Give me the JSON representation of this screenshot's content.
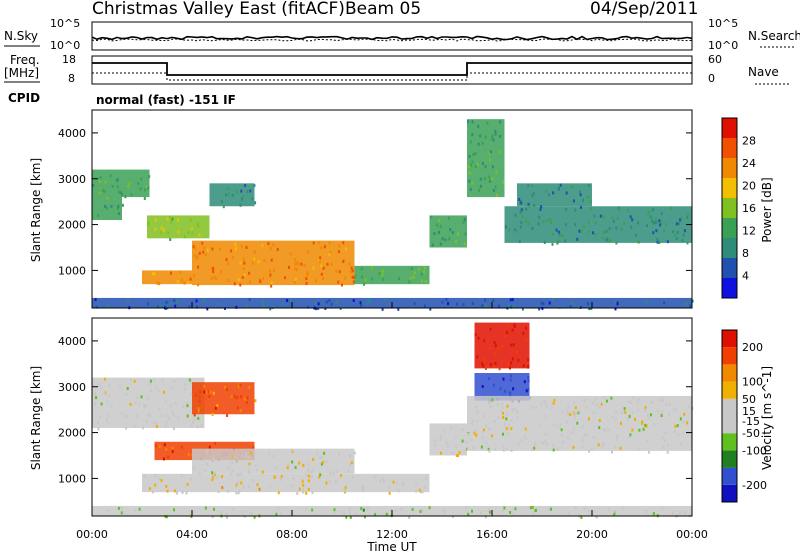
{
  "header": {
    "station": "Christmas Valley East (fitACF)",
    "beam": "Beam 05",
    "date": "04/Sep/2011"
  },
  "strips": {
    "nsky_label": "N.Sky",
    "nsearch_label": "N.Search",
    "freq_label_1": "Freq.",
    "freq_label_2": "[MHz]",
    "nave_label": "Nave",
    "cpid_label": "CPID",
    "cpid_value": "normal (fast) -151 IF",
    "noise_left_ticks": [
      "10^5",
      "10^0"
    ],
    "noise_right_ticks": [
      "10^5",
      "10^0"
    ],
    "freq_left_ticks": [
      "18",
      "8"
    ],
    "freq_right_ticks": [
      "60",
      "0"
    ]
  },
  "colors": {
    "power_scale": [
      "#1010e0",
      "#2050b0",
      "#2e8c78",
      "#3aa055",
      "#80c020",
      "#f2c000",
      "#f08800",
      "#f05000",
      "#e01000"
    ],
    "velocity_scale": [
      "#e01000",
      "#f04000",
      "#f08800",
      "#f0b000",
      "#c8c8c8",
      "#c8c8c8",
      "#60c020",
      "#208020",
      "#3050d0",
      "#1010c0"
    ],
    "gray_band": "#c8c8c8"
  },
  "chart_data": [
    {
      "type": "heatmap",
      "quantity": "power",
      "ylabel": "Slant Range [km]",
      "yticks": [
        1000,
        2000,
        3000,
        4000
      ],
      "ylim": [
        180,
        4500
      ],
      "colorbar_label": "Power [dB]",
      "colorbar_ticks": [
        4,
        8,
        12,
        16,
        20,
        24,
        28
      ],
      "colorbar_range": [
        0,
        32
      ],
      "regions": [
        {
          "t": [
            0.0,
            1.2
          ],
          "r": [
            2100,
            3200
          ],
          "v": 12
        },
        {
          "t": [
            1.2,
            2.3
          ],
          "r": [
            2600,
            3200
          ],
          "v": 14
        },
        {
          "t": [
            2.2,
            4.7
          ],
          "r": [
            1700,
            2200
          ],
          "v": 16
        },
        {
          "t": [
            4.7,
            6.5
          ],
          "r": [
            2400,
            2900
          ],
          "v": 10
        },
        {
          "t": [
            2.0,
            4.0
          ],
          "r": [
            700,
            1000
          ],
          "v": 22
        },
        {
          "t": [
            4.0,
            10.5
          ],
          "r": [
            680,
            1650
          ],
          "v": 24
        },
        {
          "t": [
            10.5,
            13.5
          ],
          "r": [
            700,
            1100
          ],
          "v": 14
        },
        {
          "t": [
            13.5,
            15.0
          ],
          "r": [
            1500,
            2200
          ],
          "v": 12
        },
        {
          "t": [
            15.0,
            16.5
          ],
          "r": [
            2600,
            4300
          ],
          "v": 12
        },
        {
          "t": [
            16.5,
            24.0
          ],
          "r": [
            1600,
            2400
          ],
          "v": 10
        },
        {
          "t": [
            17.0,
            20.0
          ],
          "r": [
            2400,
            2900
          ],
          "v": 8
        },
        {
          "t": [
            0.0,
            24.0
          ],
          "r": [
            180,
            400
          ],
          "v": 6
        }
      ]
    },
    {
      "type": "heatmap",
      "quantity": "velocity",
      "ylabel": "Slant Range [km]",
      "yticks": [
        1000,
        2000,
        3000,
        4000
      ],
      "ylim": [
        180,
        4500
      ],
      "colorbar_label": "Velocity [m s^-1]",
      "colorbar_ticks": [
        200,
        100,
        50,
        15,
        -15,
        -50,
        -100,
        -200
      ],
      "colorbar_range": [
        -250,
        250
      ],
      "regions": [
        {
          "t": [
            0.0,
            4.5
          ],
          "r": [
            2100,
            3200
          ],
          "v": 0
        },
        {
          "t": [
            2.5,
            6.5
          ],
          "r": [
            1400,
            1800
          ],
          "v": 180
        },
        {
          "t": [
            4.0,
            6.5
          ],
          "r": [
            2400,
            3100
          ],
          "v": 150
        },
        {
          "t": [
            2.0,
            10.5
          ],
          "r": [
            700,
            1100
          ],
          "v": 40
        },
        {
          "t": [
            4.0,
            10.5
          ],
          "r": [
            1100,
            1650
          ],
          "v": 0
        },
        {
          "t": [
            10.5,
            13.5
          ],
          "r": [
            700,
            1100
          ],
          "v": 10
        },
        {
          "t": [
            13.5,
            15.0
          ],
          "r": [
            1500,
            2200
          ],
          "v": 0
        },
        {
          "t": [
            15.3,
            17.5
          ],
          "r": [
            3400,
            4400
          ],
          "v": 220
        },
        {
          "t": [
            15.3,
            17.5
          ],
          "r": [
            2700,
            3300
          ],
          "v": -200
        },
        {
          "t": [
            15.0,
            24.0
          ],
          "r": [
            1600,
            2800
          ],
          "v": 0
        },
        {
          "t": [
            0.0,
            24.0
          ],
          "r": [
            180,
            400
          ],
          "v": -40
        }
      ]
    }
  ],
  "xaxis": {
    "ticks": [
      "00:00",
      "04:00",
      "08:00",
      "12:00",
      "16:00",
      "20:00",
      "00:00"
    ],
    "label": "Time UT",
    "range_hours": [
      0,
      24
    ]
  }
}
